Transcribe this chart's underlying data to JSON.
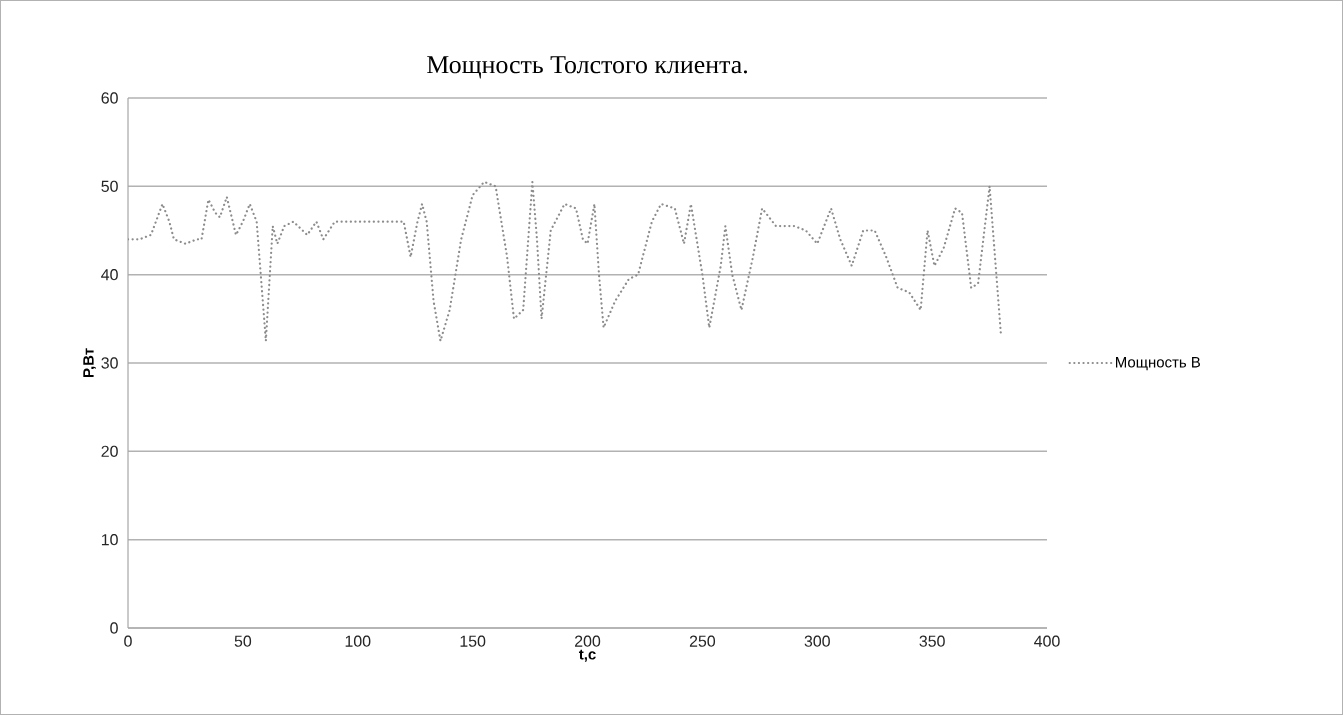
{
  "chart_data": {
    "type": "line",
    "title": "Мощность Толстого клиента.",
    "xlabel": "t,c",
    "ylabel": "P,Вт",
    "xlim": [
      0,
      400
    ],
    "xticks": [
      0,
      50,
      100,
      150,
      200,
      250,
      300,
      350,
      400
    ],
    "ylim": [
      0,
      60
    ],
    "yticks": [
      0,
      10,
      20,
      30,
      40,
      50,
      60
    ],
    "grid": "y",
    "legend": "right",
    "line_style": "dotted",
    "marker": "none",
    "x": [
      0,
      5,
      10,
      15,
      18,
      20,
      25,
      30,
      32,
      35,
      38,
      40,
      43,
      47,
      50,
      53,
      56,
      60,
      63,
      65,
      68,
      72,
      78,
      82,
      85,
      90,
      100,
      110,
      120,
      123,
      126,
      128,
      130,
      133,
      136,
      140,
      145,
      150,
      155,
      160,
      165,
      168,
      172,
      176,
      178,
      180,
      184,
      190,
      195,
      198,
      200,
      203,
      205,
      207,
      212,
      218,
      222,
      228,
      232,
      238,
      242,
      245,
      250,
      253,
      258,
      260,
      263,
      267,
      272,
      276,
      282,
      290,
      295,
      300,
      306,
      310,
      315,
      320,
      325,
      330,
      335,
      340,
      345,
      348,
      351,
      355,
      360,
      363,
      367,
      370,
      375,
      380
    ],
    "series": [
      {
        "name": "Мощность В",
        "color": "#8c8c8c",
        "values": [
          44,
          44,
          44.5,
          48,
          46,
          44,
          43.5,
          44,
          44,
          48.5,
          47,
          46.5,
          48.8,
          44.5,
          46,
          48,
          46,
          32.5,
          45.5,
          43.5,
          45.5,
          46,
          44.5,
          46,
          44,
          46,
          46,
          46,
          46,
          42,
          46,
          48,
          46,
          37,
          32.5,
          36,
          44,
          49,
          50.5,
          50,
          42,
          35,
          36,
          50.5,
          44,
          35,
          45,
          48,
          47.5,
          44,
          43.5,
          48,
          40,
          34,
          37,
          39.5,
          40,
          46,
          48,
          47.5,
          43.5,
          48,
          40,
          34,
          41,
          45.5,
          40,
          36,
          42,
          47.5,
          45.5,
          45.5,
          45,
          43.5,
          47.5,
          44,
          41,
          45,
          45,
          42,
          38.5,
          38,
          36,
          45,
          41,
          43,
          47.5,
          47,
          38.5,
          39,
          50,
          33
        ]
      }
    ]
  }
}
